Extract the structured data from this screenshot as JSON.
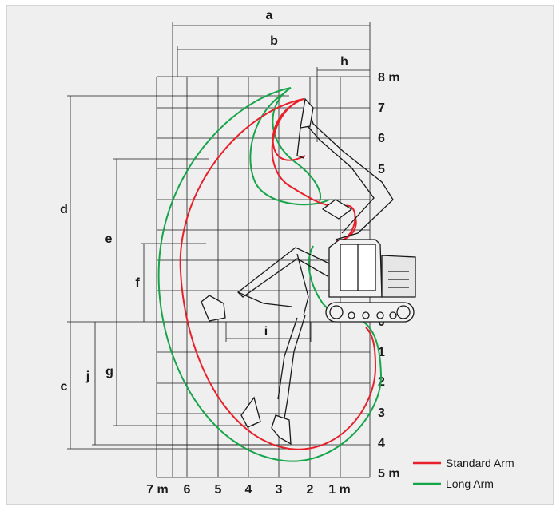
{
  "diagram": {
    "dimension_labels": {
      "a": "a",
      "b": "b",
      "h": "h",
      "d": "d",
      "e": "e",
      "f": "f",
      "i": "i",
      "c": "c",
      "j": "j",
      "g": "g"
    },
    "y_axis_labels": [
      "8 m",
      "7",
      "6",
      "5",
      "0",
      "1",
      "2",
      "3",
      "4",
      "5 m"
    ],
    "x_axis_labels": [
      "7 m",
      "6",
      "5",
      "4",
      "3",
      "2",
      "1 m"
    ]
  },
  "legend": {
    "items": [
      {
        "label": "Standard Arm",
        "color": "#e8202a"
      },
      {
        "label": "Long Arm",
        "color": "#17a54a"
      }
    ]
  },
  "colors": {
    "grid": "#1a1a1a",
    "standard_arm": "#e8202a",
    "long_arm": "#17a54a",
    "machine": "#1a1a1a"
  }
}
